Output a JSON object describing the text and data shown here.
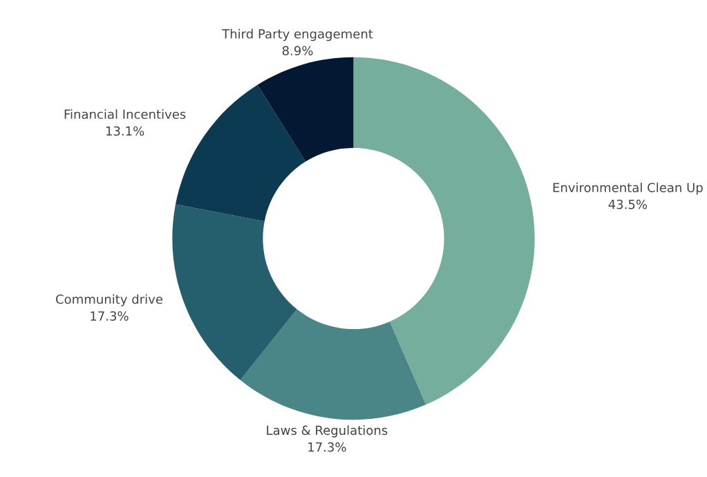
{
  "chart_data": {
    "type": "donut",
    "categories": [
      "Environmental Clean Up",
      "Laws & Regulations",
      "Community drive",
      "Financial Incentives",
      "Third Party engagement"
    ],
    "values": [
      43.5,
      17.3,
      17.3,
      13.1,
      8.9
    ],
    "value_labels": [
      "43.5%",
      "17.3%",
      "17.3%",
      "13.1%",
      "8.9%"
    ],
    "colors": [
      "#76ae9e",
      "#4a8587",
      "#255f6e",
      "#0b3a52",
      "#031833"
    ]
  }
}
